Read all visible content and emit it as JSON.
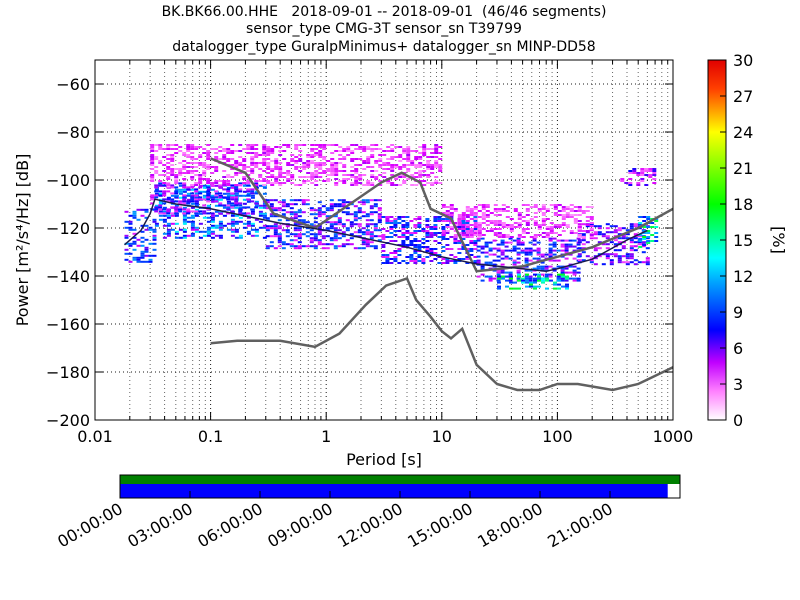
{
  "chart_data": {
    "type": "heatmap",
    "title_lines": [
      "BK.BK66.00.HHE   2018-09-01 -- 2018-09-01  (46/46 segments)",
      "sensor_type CMG-3T sensor_sn T39799",
      "datalogger_type GuralpMinimus+ datalogger_sn MINP-DD58"
    ],
    "xlabel": "Period [s]",
    "ylabel": "Power [m²/s⁴/Hz] [dB]",
    "x_scale": "log",
    "xlim": [
      0.01,
      1000
    ],
    "ylim": [
      -200,
      -50
    ],
    "x_ticks": [
      {
        "value": 0.01,
        "label": "0.01"
      },
      {
        "value": 0.1,
        "label": "0.1"
      },
      {
        "value": 1,
        "label": "1"
      },
      {
        "value": 10,
        "label": "10"
      },
      {
        "value": 100,
        "label": "100"
      },
      {
        "value": 1000,
        "label": "1000"
      }
    ],
    "y_ticks": [
      {
        "value": -60,
        "label": "−60"
      },
      {
        "value": -80,
        "label": "−80"
      },
      {
        "value": -100,
        "label": "−100"
      },
      {
        "value": -120,
        "label": "−120"
      },
      {
        "value": -140,
        "label": "−140"
      },
      {
        "value": -160,
        "label": "−160"
      },
      {
        "value": -180,
        "label": "−180"
      },
      {
        "value": -200,
        "label": "−200"
      }
    ],
    "grid": true,
    "colorbar": {
      "label": "[%]",
      "range": [
        0,
        30
      ],
      "ticks": [
        {
          "value": 0,
          "label": "0"
        },
        {
          "value": 3,
          "label": "3"
        },
        {
          "value": 6,
          "label": "6"
        },
        {
          "value": 9,
          "label": "9"
        },
        {
          "value": 12,
          "label": "12"
        },
        {
          "value": 15,
          "label": "15"
        },
        {
          "value": 18,
          "label": "18"
        },
        {
          "value": 21,
          "label": "21"
        },
        {
          "value": 24,
          "label": "24"
        },
        {
          "value": 27,
          "label": "27"
        },
        {
          "value": 30,
          "label": "30"
        }
      ],
      "colors": [
        "#ffffff",
        "#e800ff",
        "#0000ff",
        "#00ffff",
        "#00ff00",
        "#ffff00",
        "#ff0000",
        "#7f0000"
      ]
    },
    "noise_models": [
      {
        "points": [
          [
            0.1,
            -91
          ],
          [
            0.2,
            -97
          ],
          [
            0.35,
            -114
          ],
          [
            0.8,
            -120
          ],
          [
            1.5,
            -111
          ],
          [
            3,
            -101
          ],
          [
            4.5,
            -97
          ],
          [
            6.5,
            -101
          ],
          [
            8,
            -112
          ],
          [
            12,
            -116
          ],
          [
            20,
            -138
          ],
          [
            50,
            -136
          ],
          [
            70,
            -134
          ],
          [
            100,
            -132
          ],
          [
            200,
            -128
          ],
          [
            500,
            -120
          ],
          [
            1000,
            -112
          ]
        ]
      },
      {
        "points": [
          [
            0.1,
            -168
          ],
          [
            0.17,
            -167
          ],
          [
            0.4,
            -167
          ],
          [
            0.8,
            -169.5
          ],
          [
            1.3,
            -164
          ],
          [
            2.2,
            -152
          ],
          [
            3.3,
            -144
          ],
          [
            5,
            -141
          ],
          [
            6,
            -150
          ],
          [
            8,
            -157
          ],
          [
            10,
            -163
          ],
          [
            12,
            -166
          ],
          [
            15,
            -162
          ],
          [
            20,
            -177
          ],
          [
            30,
            -185
          ],
          [
            45,
            -187.5
          ],
          [
            70,
            -187.5
          ],
          [
            100,
            -185
          ],
          [
            150,
            -185
          ],
          [
            300,
            -187.5
          ],
          [
            500,
            -185
          ],
          [
            1000,
            -178
          ]
        ]
      }
    ],
    "mean_curve": [
      [
        0.018,
        -127
      ],
      [
        0.025,
        -121
      ],
      [
        0.03,
        -114
      ],
      [
        0.033,
        -108
      ],
      [
        0.05,
        -110
      ],
      [
        0.1,
        -112
      ],
      [
        0.2,
        -115
      ],
      [
        0.4,
        -118
      ],
      [
        1,
        -121
      ],
      [
        2,
        -124
      ],
      [
        5,
        -128
      ],
      [
        10,
        -132
      ],
      [
        20,
        -135
      ],
      [
        50,
        -137
      ],
      [
        80,
        -138
      ],
      [
        100,
        -137
      ],
      [
        200,
        -133
      ],
      [
        400,
        -125
      ],
      [
        600,
        -121
      ]
    ],
    "density": [
      {
        "x_range": [
          0.018,
          0.033
        ],
        "y_range": [
          -134,
          -112
        ],
        "level": 7
      },
      {
        "x_range": [
          0.033,
          0.3
        ],
        "y_range": [
          -124,
          -102
        ],
        "level": 8
      },
      {
        "x_range": [
          0.03,
          0.25
        ],
        "y_range": [
          -114,
          -101
        ],
        "level": 5
      },
      {
        "x_range": [
          0.3,
          3
        ],
        "y_range": [
          -128,
          -108
        ],
        "level": 6
      },
      {
        "x_range": [
          3,
          20
        ],
        "y_range": [
          -135,
          -115
        ],
        "level": 6
      },
      {
        "x_range": [
          20,
          150
        ],
        "y_range": [
          -142,
          -124
        ],
        "level": 6
      },
      {
        "x_range": [
          30,
          120
        ],
        "y_range": [
          -145,
          -139
        ],
        "level": 12
      },
      {
        "x_range": [
          150,
          600
        ],
        "y_range": [
          -135,
          -118
        ],
        "level": 5
      },
      {
        "x_range": [
          500,
          700
        ],
        "y_range": [
          -128,
          -115
        ],
        "level": 12
      },
      {
        "x_range": [
          0.03,
          10
        ],
        "y_range": [
          -102,
          -85
        ],
        "level": 3
      },
      {
        "x_range": [
          10,
          200
        ],
        "y_range": [
          -124,
          -110
        ],
        "level": 3
      },
      {
        "x_range": [
          350,
          700
        ],
        "y_range": [
          -102,
          -95
        ],
        "level": 4
      }
    ],
    "time_axis": {
      "labels": [
        "00:00:00",
        "03:00:00",
        "06:00:00",
        "09:00:00",
        "12:00:00",
        "15:00:00",
        "18:00:00",
        "21:00:00"
      ],
      "coverage_fraction": 0.978,
      "colors": {
        "processed": "#008000",
        "data": "#0000ff"
      }
    }
  }
}
